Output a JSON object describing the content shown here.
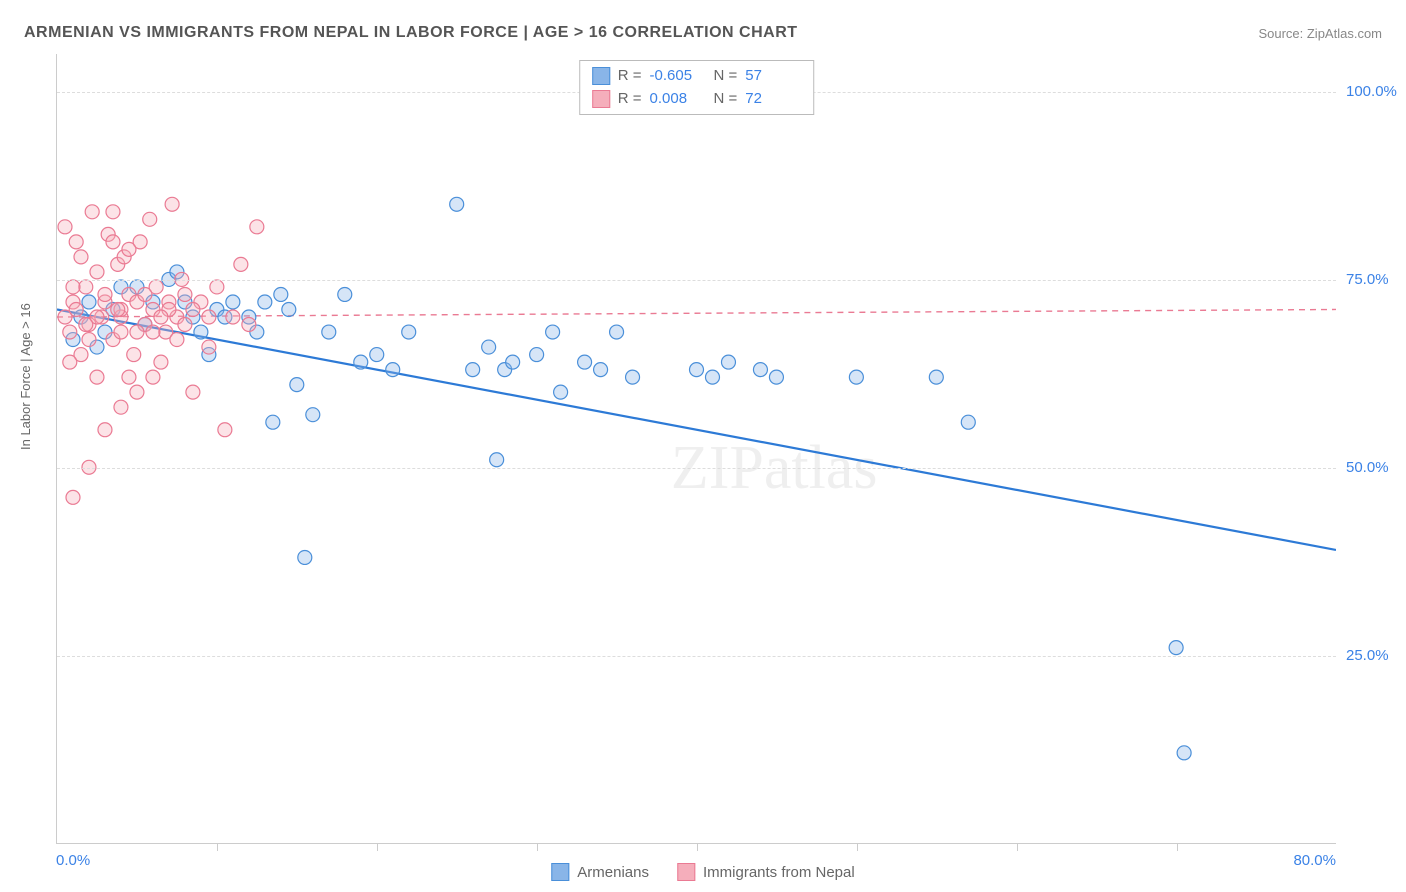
{
  "title": "ARMENIAN VS IMMIGRANTS FROM NEPAL IN LABOR FORCE | AGE > 16 CORRELATION CHART",
  "source": "Source: ZipAtlas.com",
  "watermark": "ZIPatlas",
  "ylabel": "In Labor Force | Age > 16",
  "chart": {
    "type": "scatter",
    "xlim": [
      0,
      80
    ],
    "ylim": [
      0,
      105
    ],
    "ytick_values": [
      25,
      50,
      75,
      100
    ],
    "ytick_labels": [
      "25.0%",
      "50.0%",
      "75.0%",
      "100.0%"
    ],
    "xtick_values": [
      10,
      20,
      30,
      40,
      50,
      60,
      70
    ],
    "xlabel_min": "0.0%",
    "xlabel_max": "80.0%",
    "grid_color": "#dddddd",
    "border_color": "#cccccc",
    "background_color": "#ffffff",
    "marker_radius": 7,
    "marker_stroke_width": 1.2,
    "marker_fill_opacity": 0.35,
    "regression_line_width_solid": 2.2,
    "regression_line_width_dashed": 1.4
  },
  "series": [
    {
      "name": "Armenians",
      "color_fill": "#89b5e8",
      "color_stroke": "#4a8fd9",
      "regression": {
        "x1": 0,
        "y1": 71,
        "x2": 80,
        "y2": 39,
        "dashed": false,
        "color": "#2d7ad6"
      },
      "R": "-0.605",
      "N": "57",
      "points": [
        [
          1,
          67
        ],
        [
          1.5,
          70
        ],
        [
          2,
          72
        ],
        [
          2.5,
          66
        ],
        [
          3,
          68
        ],
        [
          3.5,
          71
        ],
        [
          4,
          74
        ],
        [
          5,
          74
        ],
        [
          5.5,
          69
        ],
        [
          6,
          72
        ],
        [
          7,
          75
        ],
        [
          7.5,
          76
        ],
        [
          8,
          72
        ],
        [
          8.5,
          70
        ],
        [
          9,
          68
        ],
        [
          9.5,
          65
        ],
        [
          10,
          71
        ],
        [
          10.5,
          70
        ],
        [
          11,
          72
        ],
        [
          12,
          70
        ],
        [
          12.5,
          68
        ],
        [
          13,
          72
        ],
        [
          13.5,
          56
        ],
        [
          14,
          73
        ],
        [
          14.5,
          71
        ],
        [
          15,
          61
        ],
        [
          15.5,
          38
        ],
        [
          16,
          57
        ],
        [
          17,
          68
        ],
        [
          18,
          73
        ],
        [
          19,
          64
        ],
        [
          20,
          65
        ],
        [
          21,
          63
        ],
        [
          22,
          68
        ],
        [
          25,
          85
        ],
        [
          26,
          63
        ],
        [
          27,
          66
        ],
        [
          27.5,
          51
        ],
        [
          28,
          63
        ],
        [
          28.5,
          64
        ],
        [
          30,
          65
        ],
        [
          31,
          68
        ],
        [
          31.5,
          60
        ],
        [
          33,
          64
        ],
        [
          34,
          63
        ],
        [
          35,
          68
        ],
        [
          36,
          62
        ],
        [
          40,
          63
        ],
        [
          41,
          62
        ],
        [
          42,
          64
        ],
        [
          44,
          63
        ],
        [
          45,
          62
        ],
        [
          57,
          56
        ],
        [
          70,
          26
        ],
        [
          70.5,
          12
        ],
        [
          55,
          62
        ],
        [
          50,
          62
        ]
      ]
    },
    {
      "name": "Immigrants from Nepal",
      "color_fill": "#f5aebb",
      "color_stroke": "#ea7a93",
      "regression": {
        "x1": 0,
        "y1": 70,
        "x2": 80,
        "y2": 71,
        "dashed": true,
        "color": "#ea7a93"
      },
      "R": "0.008",
      "N": "72",
      "points": [
        [
          0.5,
          70
        ],
        [
          0.8,
          68
        ],
        [
          1,
          72
        ],
        [
          1.2,
          80
        ],
        [
          1.5,
          65
        ],
        [
          1.8,
          74
        ],
        [
          2,
          69
        ],
        [
          2.2,
          84
        ],
        [
          2.5,
          62
        ],
        [
          2.8,
          70
        ],
        [
          3,
          72
        ],
        [
          3.2,
          81
        ],
        [
          3.5,
          67
        ],
        [
          3.8,
          77
        ],
        [
          4,
          70
        ],
        [
          4.2,
          78
        ],
        [
          4.5,
          73
        ],
        [
          4.8,
          65
        ],
        [
          5,
          72
        ],
        [
          5.2,
          80
        ],
        [
          5.5,
          69
        ],
        [
          5.8,
          83
        ],
        [
          6,
          71
        ],
        [
          6.2,
          74
        ],
        [
          6.5,
          64
        ],
        [
          6.8,
          68
        ],
        [
          7,
          72
        ],
        [
          7.2,
          85
        ],
        [
          7.5,
          70
        ],
        [
          7.8,
          75
        ],
        [
          8,
          69
        ],
        [
          8.5,
          60
        ],
        [
          9,
          72
        ],
        [
          9.5,
          66
        ],
        [
          10,
          74
        ],
        [
          10.5,
          55
        ],
        [
          11,
          70
        ],
        [
          11.5,
          77
        ],
        [
          12,
          69
        ],
        [
          12.5,
          82
        ],
        [
          1,
          46
        ],
        [
          2,
          50
        ],
        [
          3,
          55
        ],
        [
          4,
          58
        ],
        [
          1.5,
          78
        ],
        [
          2.5,
          76
        ],
        [
          3.5,
          80
        ],
        [
          4.5,
          79
        ],
        [
          0.5,
          82
        ],
        [
          0.8,
          64
        ],
        [
          5,
          60
        ],
        [
          6,
          62
        ],
        [
          3,
          73
        ],
        [
          4,
          68
        ],
        [
          7,
          71
        ],
        [
          8,
          73
        ],
        [
          2,
          67
        ],
        [
          1,
          74
        ],
        [
          4,
          71
        ],
        [
          5,
          68
        ],
        [
          6,
          68
        ],
        [
          2.5,
          70
        ],
        [
          3.5,
          84
        ],
        [
          4.5,
          62
        ],
        [
          1.2,
          71
        ],
        [
          1.8,
          69
        ],
        [
          3.8,
          71
        ],
        [
          5.5,
          73
        ],
        [
          6.5,
          70
        ],
        [
          7.5,
          67
        ],
        [
          8.5,
          71
        ],
        [
          9.5,
          70
        ]
      ]
    }
  ],
  "legend": {
    "series1_label": "Armenians",
    "series2_label": "Immigrants from Nepal"
  },
  "correlation_box": {
    "R_label": "R =",
    "N_label": "N ="
  }
}
